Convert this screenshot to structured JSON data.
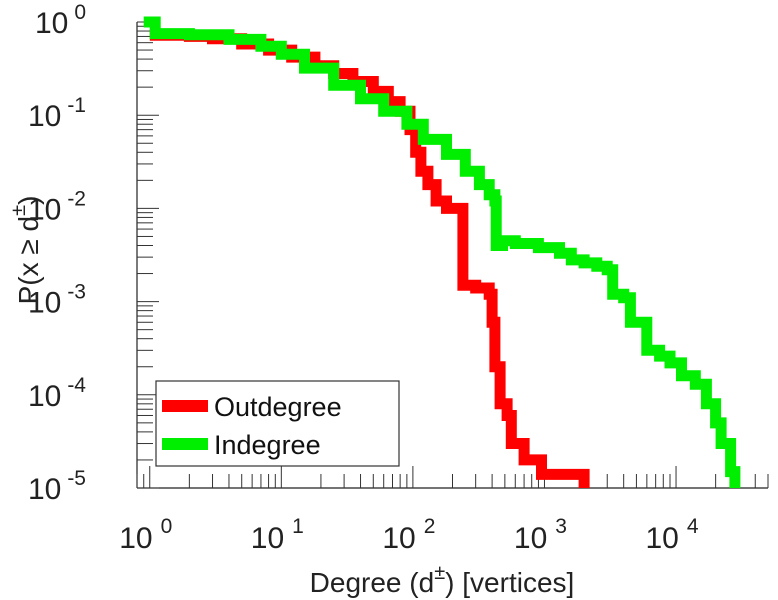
{
  "chart_data": {
    "type": "line",
    "xscale": "log",
    "yscale": "log",
    "xlim": [
      0.8,
      50000
    ],
    "ylim": [
      1e-05,
      1
    ],
    "x_ticks": [
      {
        "value": 1,
        "base": "10",
        "exp": "0"
      },
      {
        "value": 10,
        "base": "10",
        "exp": "1"
      },
      {
        "value": 100,
        "base": "10",
        "exp": "2"
      },
      {
        "value": 1000,
        "base": "10",
        "exp": "3"
      },
      {
        "value": 10000,
        "base": "10",
        "exp": "4"
      }
    ],
    "y_ticks": [
      {
        "value": 1,
        "base": "10",
        "exp": "0"
      },
      {
        "value": 0.1,
        "base": "10",
        "exp": "-1"
      },
      {
        "value": 0.01,
        "base": "10",
        "exp": "-2"
      },
      {
        "value": 0.001,
        "base": "10",
        "exp": "-3"
      },
      {
        "value": 0.0001,
        "base": "10",
        "exp": "-4"
      },
      {
        "value": 1e-05,
        "base": "10",
        "exp": "-5"
      }
    ],
    "xlabel": {
      "main": "Degree (d",
      "sup": "±",
      "rest": ") [vertices]"
    },
    "ylabel": {
      "main": "P(x ≥ d",
      "sup": "±",
      "rest": ")"
    },
    "legend_position": "bottom-left",
    "series": [
      {
        "name": "Outdegree",
        "color": "#ff0000",
        "points": [
          [
            1,
            0.72
          ],
          [
            2,
            0.7
          ],
          [
            3,
            0.66
          ],
          [
            5,
            0.58
          ],
          [
            8,
            0.5
          ],
          [
            12,
            0.42
          ],
          [
            18,
            0.34
          ],
          [
            25,
            0.28
          ],
          [
            35,
            0.23
          ],
          [
            50,
            0.18
          ],
          [
            65,
            0.14
          ],
          [
            80,
            0.11
          ],
          [
            95,
            0.07
          ],
          [
            105,
            0.04
          ],
          [
            115,
            0.025
          ],
          [
            130,
            0.018
          ],
          [
            150,
            0.012
          ],
          [
            180,
            0.01
          ],
          [
            230,
            0.01
          ],
          [
            240,
            0.0015
          ],
          [
            300,
            0.0014
          ],
          [
            380,
            0.0012
          ],
          [
            400,
            0.0006
          ],
          [
            420,
            0.0002
          ],
          [
            460,
            8e-05
          ],
          [
            520,
            6e-05
          ],
          [
            560,
            3e-05
          ],
          [
            650,
            3e-05
          ],
          [
            700,
            2e-05
          ],
          [
            900,
            2e-05
          ],
          [
            950,
            1.4e-05
          ],
          [
            2000,
            1.4e-05
          ],
          [
            2000,
            1e-05
          ]
        ]
      },
      {
        "name": "Indegree",
        "color": "#00ee00",
        "points": [
          [
            0.9,
            1.0
          ],
          [
            1.1,
            1.0
          ],
          [
            1.1,
            0.75
          ],
          [
            2,
            0.73
          ],
          [
            4,
            0.65
          ],
          [
            7,
            0.55
          ],
          [
            10,
            0.45
          ],
          [
            15,
            0.32
          ],
          [
            25,
            0.21
          ],
          [
            40,
            0.15
          ],
          [
            60,
            0.11
          ],
          [
            90,
            0.08
          ],
          [
            120,
            0.055
          ],
          [
            180,
            0.038
          ],
          [
            250,
            0.025
          ],
          [
            320,
            0.018
          ],
          [
            380,
            0.014
          ],
          [
            420,
            0.012
          ],
          [
            430,
            0.004
          ],
          [
            480,
            0.0045
          ],
          [
            600,
            0.0042
          ],
          [
            900,
            0.0038
          ],
          [
            1300,
            0.0033
          ],
          [
            1600,
            0.0028
          ],
          [
            2000,
            0.0026
          ],
          [
            2500,
            0.0024
          ],
          [
            3000,
            0.0022
          ],
          [
            3300,
            0.0012
          ],
          [
            4000,
            0.0011
          ],
          [
            4500,
            0.0006
          ],
          [
            6000,
            0.0003
          ],
          [
            7500,
            0.00026
          ],
          [
            9000,
            0.00022
          ],
          [
            11000,
            0.00016
          ],
          [
            14000,
            0.00013
          ],
          [
            17000,
            8e-05
          ],
          [
            20000,
            5e-05
          ],
          [
            22000,
            3e-05
          ],
          [
            26000,
            1.5e-05
          ],
          [
            28000,
            1e-05
          ]
        ]
      }
    ]
  }
}
